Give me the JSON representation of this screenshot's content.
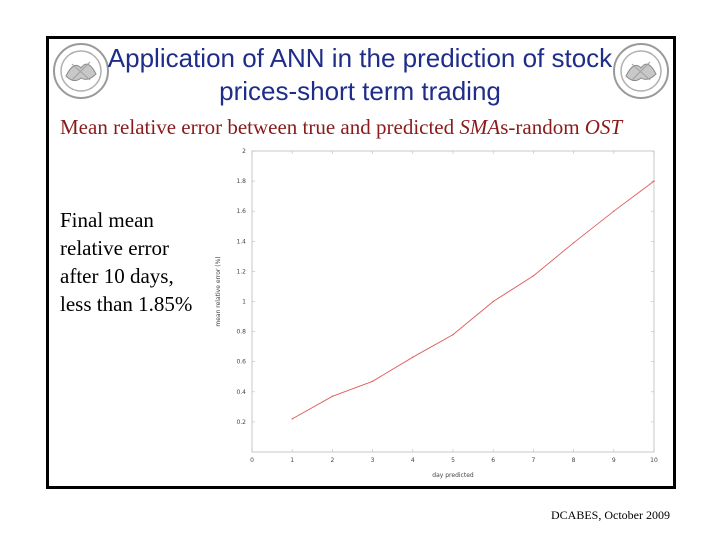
{
  "slide": {
    "title_line1": "Application of ANN in the prediction of stock",
    "title_line2": "prices-short term trading",
    "subtitle_pre": "Mean relative error between true and predicted ",
    "subtitle_sma": "SMA",
    "subtitle_mid": "s-random ",
    "subtitle_ost": "OST",
    "side_text": [
      "Final mean",
      "relative error",
      "after 10 days,",
      "less than 1.85%"
    ],
    "footer": "DCABES, October 2009",
    "title_color": "#1f2d8a",
    "subtitle_color": "#8b1a1a",
    "line_color": "#e05a5a",
    "seal_icon": "university-seal-icon"
  },
  "chart_data": {
    "type": "line",
    "title": "",
    "xlabel": "day predicted",
    "ylabel": "mean relative error (%)",
    "xlim": [
      0,
      10
    ],
    "ylim": [
      0,
      2
    ],
    "x_ticks": [
      0,
      1,
      2,
      3,
      4,
      5,
      6,
      7,
      8,
      9,
      10
    ],
    "y_ticks": [
      0.2,
      0.4,
      0.6,
      0.8,
      1,
      1.2,
      1.4,
      1.6,
      1.8,
      2
    ],
    "grid": false,
    "series": [
      {
        "x": [
          1,
          2,
          3,
          4,
          5,
          6,
          7,
          8,
          9,
          10
        ],
        "y": [
          0.22,
          0.37,
          0.47,
          0.63,
          0.78,
          1.0,
          1.17,
          1.39,
          1.6,
          1.8
        ]
      }
    ]
  }
}
